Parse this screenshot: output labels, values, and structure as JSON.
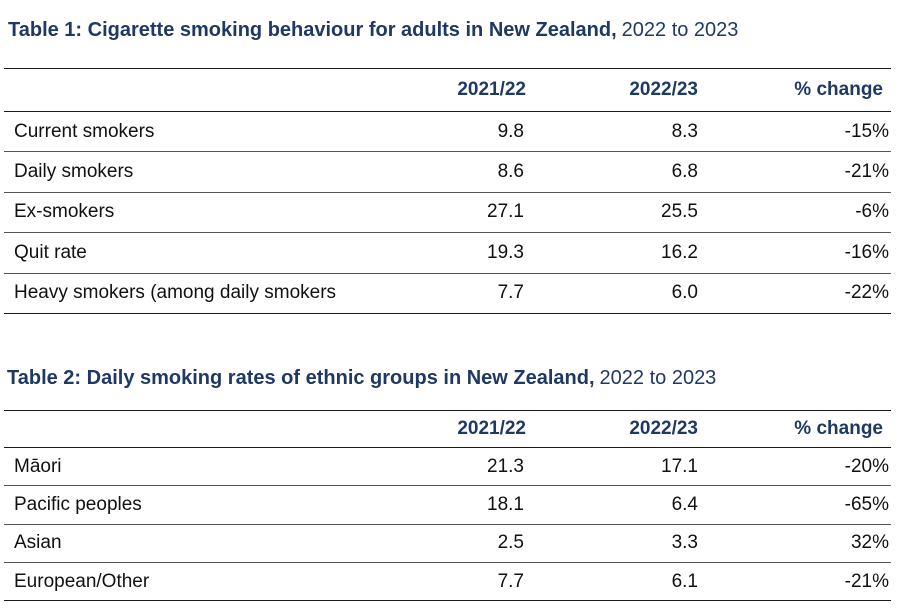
{
  "table1": {
    "title_bold": "Table 1: Cigarette smoking behaviour for adults in New Zealand,",
    "title_rest": "2022 to 2023",
    "headers": [
      "",
      "2021/22",
      "2022/23",
      "% change"
    ],
    "rows": [
      {
        "label": "Current smokers",
        "y1": "9.8",
        "y2": "8.3",
        "change": "-15%"
      },
      {
        "label": "Daily smokers",
        "y1": "8.6",
        "y2": "6.8",
        "change": "-21%"
      },
      {
        "label": "Ex-smokers",
        "y1": "27.1",
        "y2": "25.5",
        "change": "-6%"
      },
      {
        "label": "Quit rate",
        "y1": "19.3",
        "y2": "16.2",
        "change": "-16%"
      },
      {
        "label": "Heavy smokers (among daily smokers",
        "y1": "7.7",
        "y2": "6.0",
        "change": "-22%"
      }
    ]
  },
  "table2": {
    "title_bold": "Table 2: Daily smoking rates of ethnic groups in New Zealand,",
    "title_rest": "2022 to 2023",
    "headers": [
      "",
      "2021/22",
      "2022/23",
      "% change"
    ],
    "rows": [
      {
        "label": "Māori",
        "y1": "21.3",
        "y2": "17.1",
        "change": "-20%"
      },
      {
        "label": "Pacific peoples",
        "y1": "18.1",
        "y2": "6.4",
        "change": "-65%"
      },
      {
        "label": "Asian",
        "y1": "2.5",
        "y2": "3.3",
        "change": "32%"
      },
      {
        "label": "European/Other",
        "y1": "7.7",
        "y2": "6.1",
        "change": "-21%"
      }
    ]
  },
  "colors": {
    "title": "#1f3864",
    "header": "#1f3864",
    "text": "#111111",
    "rule": "#1a1a1a"
  }
}
